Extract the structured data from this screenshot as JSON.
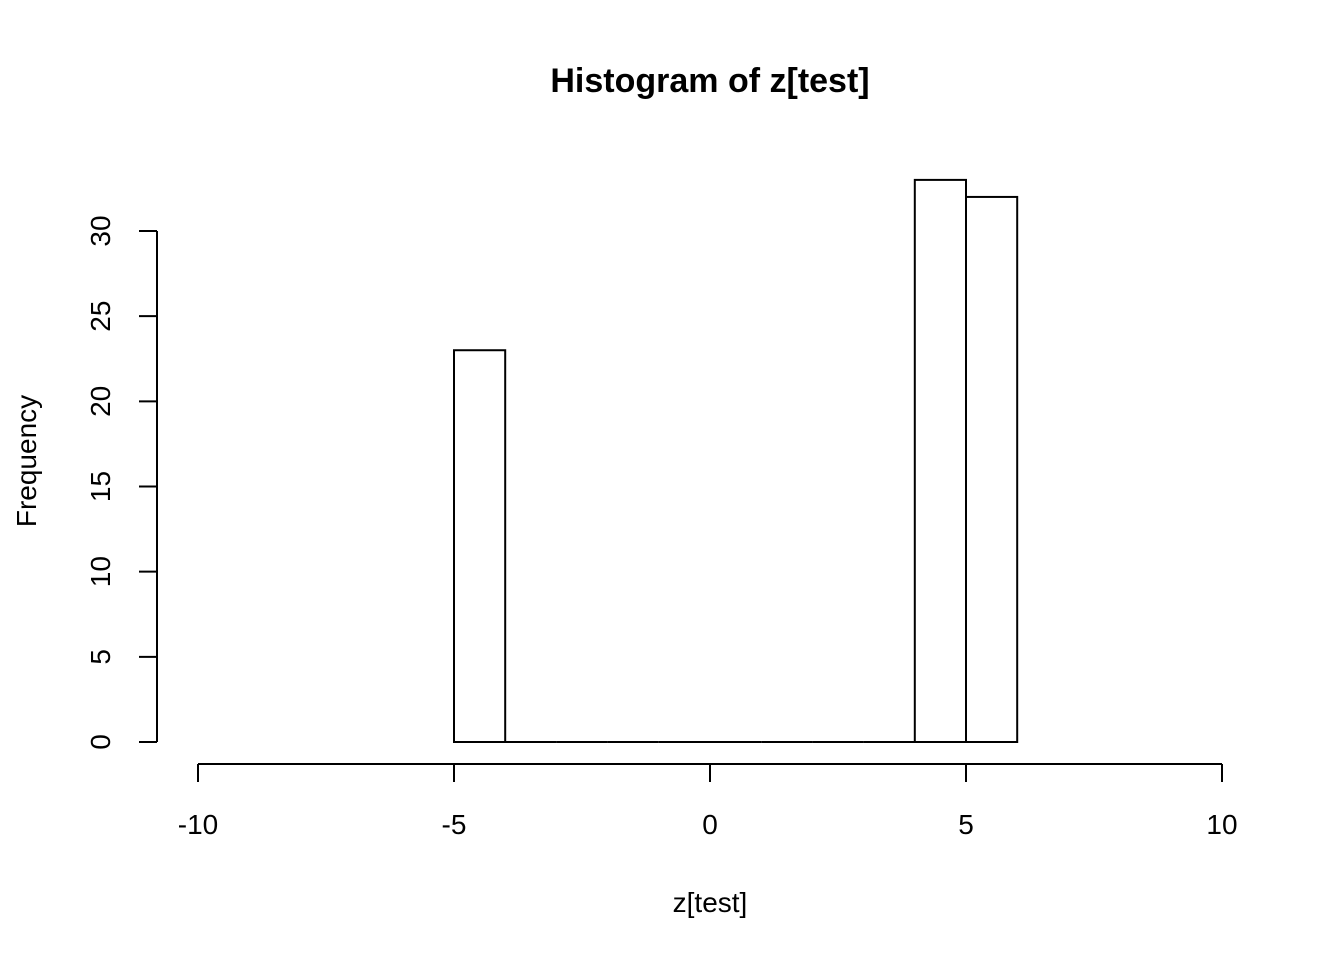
{
  "chart_data": {
    "type": "bar",
    "subtype": "histogram",
    "title": "Histogram of z[test]",
    "xlabel": "z[test]",
    "ylabel": "Frequency",
    "xlim": [
      -10,
      10
    ],
    "ylim": [
      0,
      33
    ],
    "x_ticks": [
      "-10",
      "-5",
      "0",
      "5",
      "10"
    ],
    "y_ticks": [
      "0",
      "5",
      "10",
      "15",
      "20",
      "25",
      "30"
    ],
    "bins": [
      {
        "start": -5,
        "end": -4,
        "count": 23
      },
      {
        "start": -4,
        "end": -3,
        "count": 0
      },
      {
        "start": -3,
        "end": -2,
        "count": 0
      },
      {
        "start": -2,
        "end": -1,
        "count": 0
      },
      {
        "start": -1,
        "end": 0,
        "count": 0
      },
      {
        "start": 0,
        "end": 1,
        "count": 0
      },
      {
        "start": 1,
        "end": 2,
        "count": 0
      },
      {
        "start": 2,
        "end": 3,
        "count": 0
      },
      {
        "start": 3,
        "end": 4,
        "count": 0
      },
      {
        "start": 4,
        "end": 5,
        "count": 33
      },
      {
        "start": 5,
        "end": 6,
        "count": 32
      }
    ],
    "bar_fill": "#ffffff",
    "bar_stroke": "#000000",
    "grid": false,
    "legend": "none"
  }
}
